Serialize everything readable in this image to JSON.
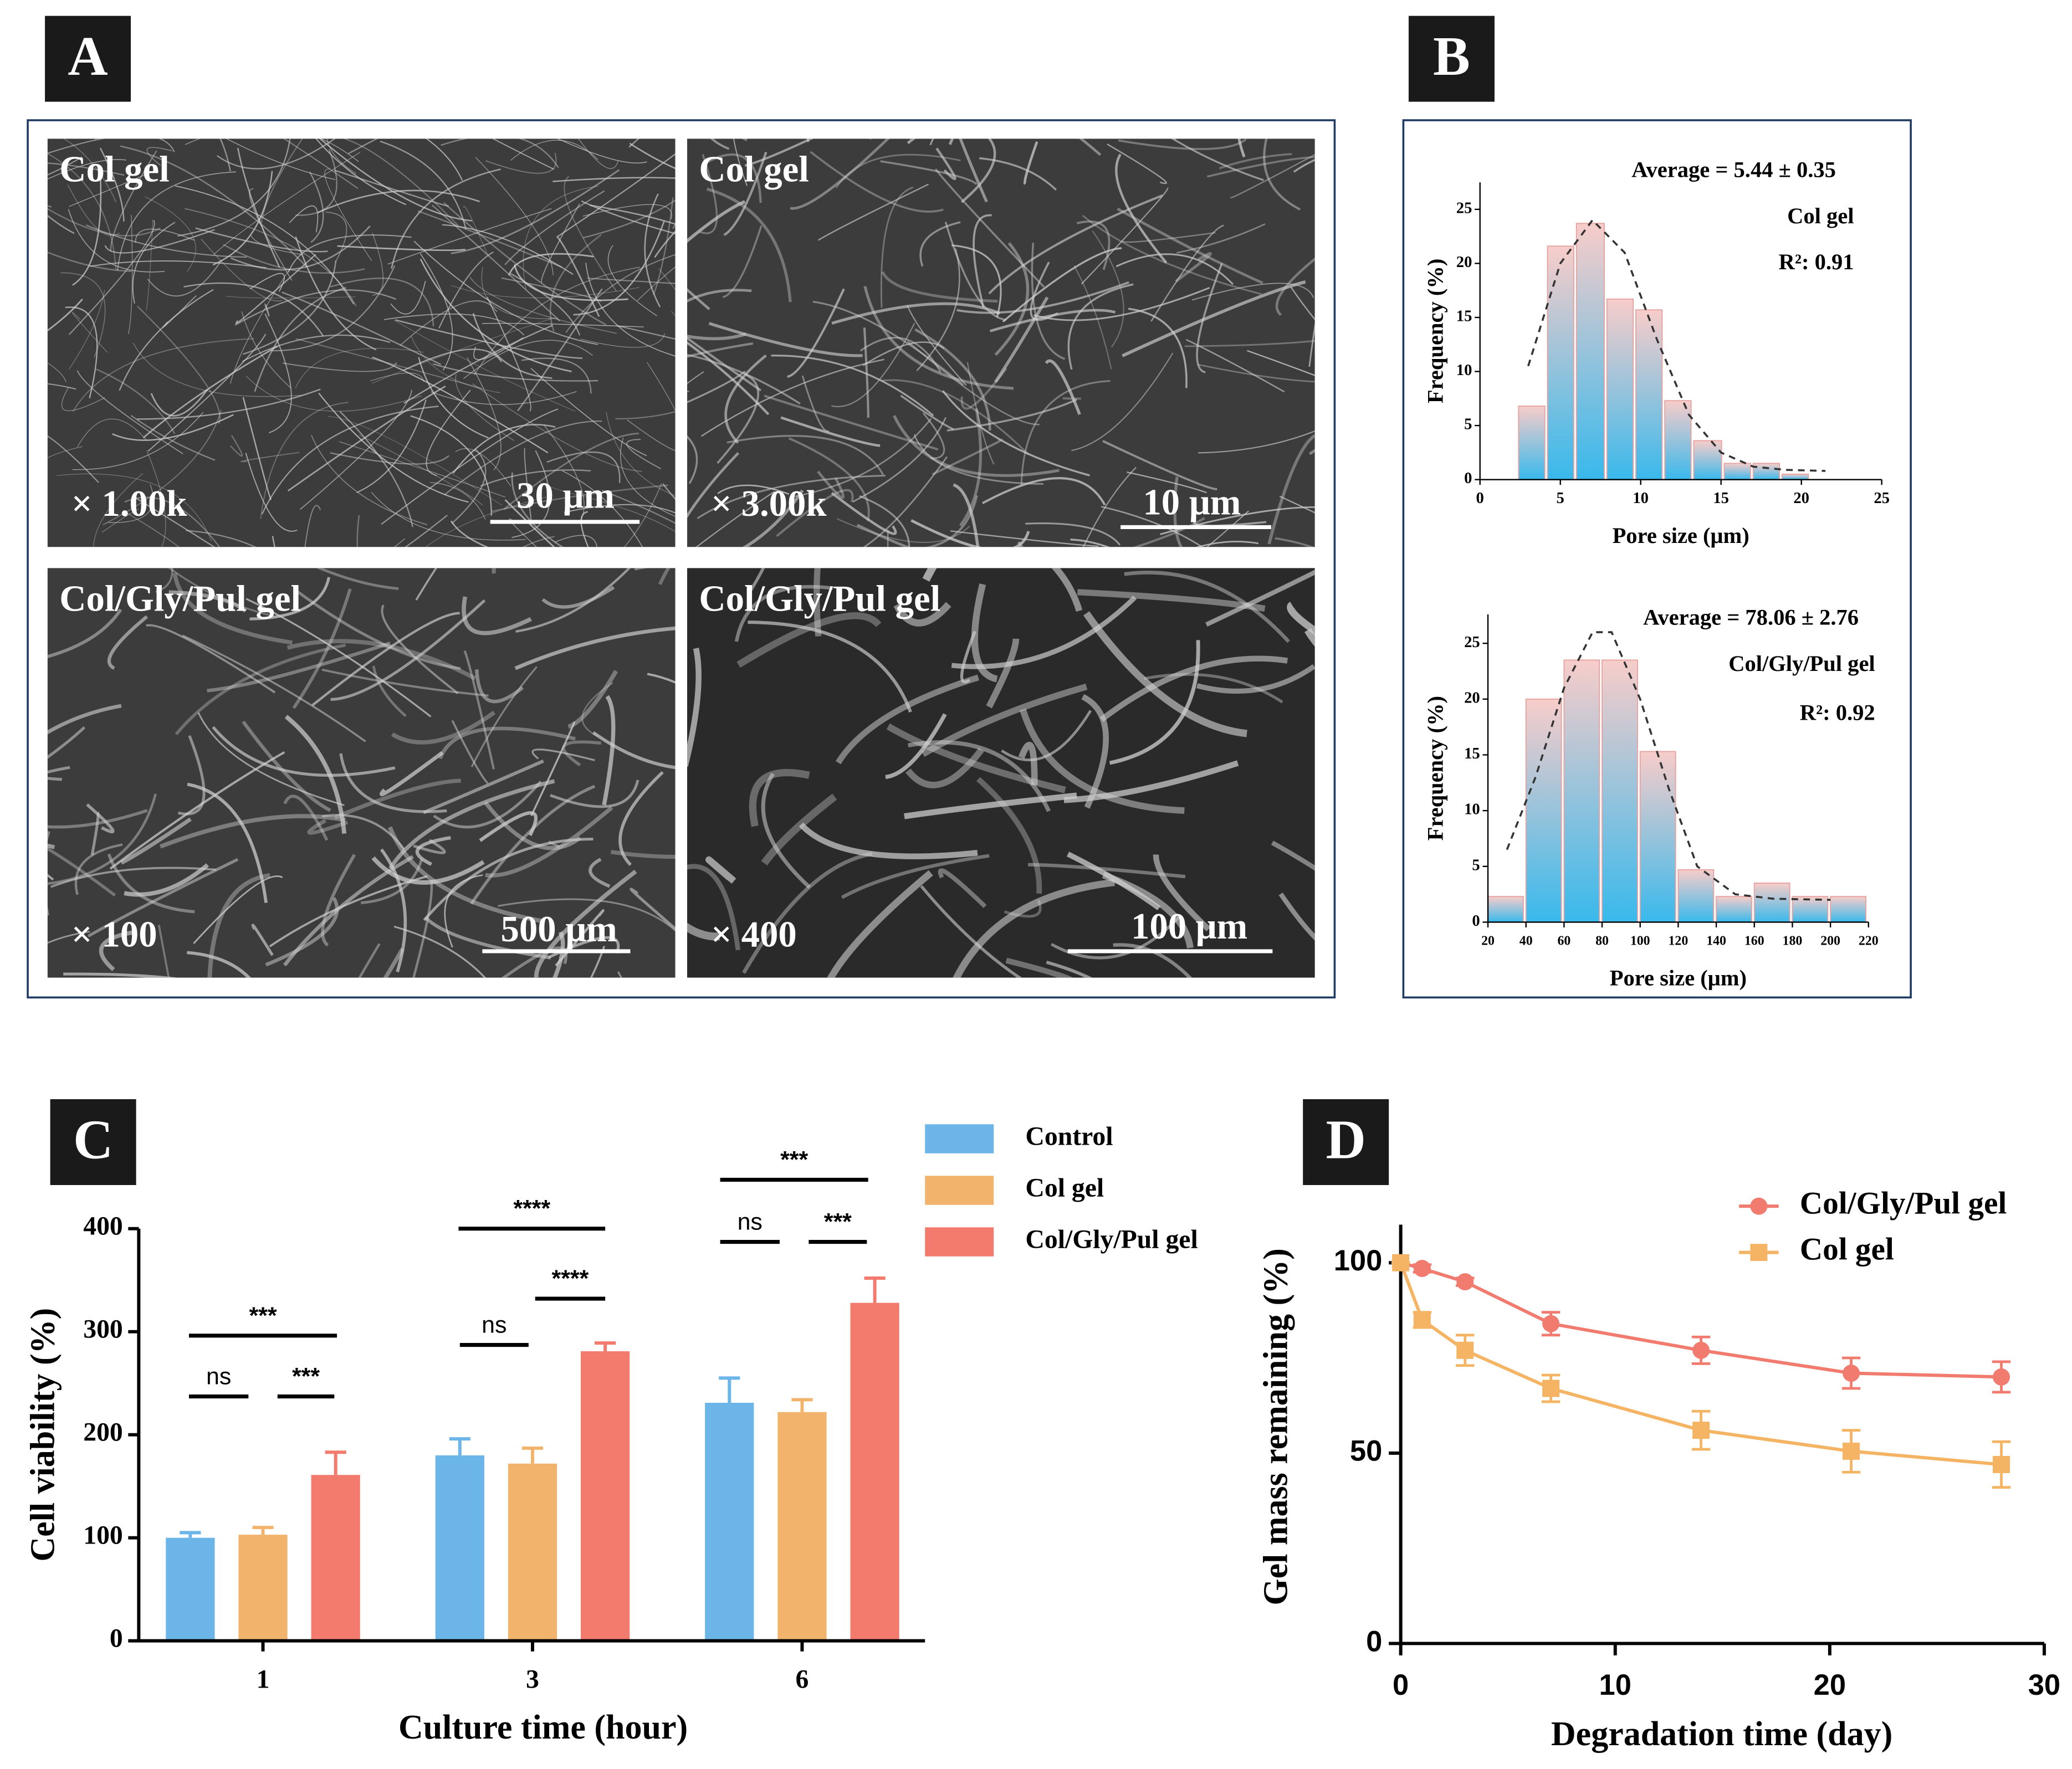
{
  "panel_labels": [
    "A",
    "B",
    "C",
    "D"
  ],
  "sem_images": [
    {
      "sample": "Col gel",
      "magnification": "× 1.00k",
      "scale_bar": "30 μm"
    },
    {
      "sample": "Col gel",
      "magnification": "× 3.00k",
      "scale_bar": "10 μm"
    },
    {
      "sample": "Col/Gly/Pul gel",
      "magnification": "× 100",
      "scale_bar": "500 μm"
    },
    {
      "sample": "Col/Gly/Pul gel",
      "magnification": "× 400",
      "scale_bar": "100 μm"
    }
  ],
  "chart_data": [
    {
      "type": "histogram",
      "xlabel": "Pore size (μm)",
      "ylabel": "Frequency (%)",
      "annotations": [
        "Average = 5.44 ± 0.35",
        "Col gel",
        "R²: 0.91"
      ],
      "bins": [
        2.4,
        4.2,
        6.0,
        7.9,
        9.7,
        11.5,
        13.3,
        15.2,
        17.0,
        18.8,
        20.6
      ],
      "values": [
        6.8,
        21.6,
        23.7,
        16.7,
        15.7,
        7.3,
        3.6,
        1.5,
        1.5,
        0.5
      ],
      "colors": [
        "#f8cdca",
        "#38b9ec"
      ],
      "fit_curve": {
        "x": [
          3,
          5,
          7,
          9,
          11,
          13,
          15,
          17,
          19,
          21.5
        ],
        "y": [
          10.5,
          20,
          24,
          21,
          13,
          6,
          2.5,
          1.2,
          0.9,
          0.8
        ]
      },
      "xlim": [
        0,
        25
      ],
      "xticks": [
        0,
        5,
        10,
        15,
        20,
        25
      ],
      "ylim": [
        0,
        27.5
      ],
      "yticks": [
        0,
        5,
        10,
        15,
        20,
        25
      ]
    },
    {
      "type": "histogram",
      "xlabel": "Pore size (μm)",
      "ylabel": "Frequency (%)",
      "annotations": [
        "Average = 78.06 ± 2.76",
        "Col/Gly/Pul gel",
        "R²: 0.92"
      ],
      "bins": [
        20,
        40,
        60,
        80,
        100,
        120,
        140,
        160,
        180,
        200,
        220
      ],
      "values": [
        2.3,
        20,
        23.5,
        23.5,
        15.3,
        4.7,
        2.3,
        3.5,
        2.3,
        2.3
      ],
      "colors": [
        "#f8cdca",
        "#38b9ec"
      ],
      "fit_curve": {
        "x": [
          30,
          45,
          60,
          75,
          85,
          100,
          115,
          130,
          150,
          170,
          200
        ],
        "y": [
          6.5,
          13,
          21,
          26,
          26,
          20,
          12,
          5,
          2.5,
          2.1,
          2
        ]
      },
      "xlim": [
        20,
        220
      ],
      "xticks": [
        20,
        40,
        60,
        80,
        100,
        120,
        140,
        160,
        180,
        200,
        220
      ],
      "ylim": [
        0,
        27.6
      ],
      "yticks": [
        0,
        5,
        10,
        15,
        20,
        25
      ]
    },
    {
      "type": "bar",
      "xlabel": "Culture time (hour)",
      "ylabel": "Cell viability (%)",
      "categories": [
        "1",
        "3",
        "6"
      ],
      "series": [
        {
          "name": "Control",
          "color": "#6cb5e9",
          "values": [
            100,
            180,
            231
          ],
          "errors": [
            5,
            16,
            24
          ]
        },
        {
          "name": "Col gel",
          "color": "#f2b46c",
          "values": [
            103,
            172,
            222
          ],
          "errors": [
            7,
            15,
            12
          ]
        },
        {
          "name": "Col/Gly/Pul gel",
          "color": "#f27b6e",
          "values": [
            161,
            281,
            328
          ],
          "errors": [
            22,
            8,
            24
          ]
        }
      ],
      "annotations": [
        "***",
        "ns",
        "***",
        "****",
        "ns",
        "****",
        "***",
        "ns",
        "***"
      ],
      "ylim": [
        0,
        400
      ],
      "yticks": [
        0,
        100,
        200,
        300,
        400
      ]
    },
    {
      "type": "line",
      "xlabel": "Degradation time (day)",
      "ylabel": "Gel mass remaining (%)",
      "x": [
        0,
        1,
        3,
        7,
        14,
        21,
        28
      ],
      "series": [
        {
          "name": "Col/Gly/Pul gel",
          "color": "#f07b6e",
          "marker": "circle",
          "values": [
            100,
            98.5,
            95,
            84,
            77,
            71,
            70
          ],
          "errors": [
            0,
            1,
            1,
            3,
            3.5,
            4,
            4
          ]
        },
        {
          "name": "Col gel",
          "color": "#f5b463",
          "marker": "square",
          "values": [
            100,
            85,
            77,
            67,
            56,
            50.5,
            47
          ],
          "errors": [
            0,
            2,
            4,
            3.5,
            5,
            5.5,
            6
          ]
        }
      ],
      "xlim": [
        0,
        30
      ],
      "xticks": [
        0,
        10,
        20,
        30
      ],
      "ylim": [
        0,
        110
      ],
      "yticks": [
        0,
        50,
        100
      ]
    }
  ]
}
